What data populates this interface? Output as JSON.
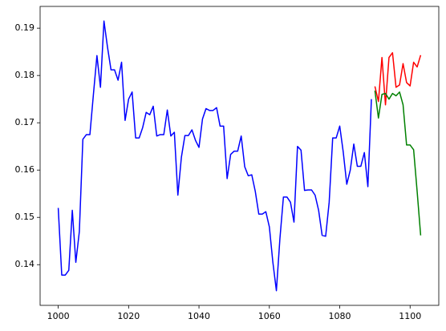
{
  "chart_data": {
    "type": "line",
    "series": [
      {
        "color": "#0000ff",
        "x": [
          1000,
          1001,
          1002,
          1003,
          1004,
          1005,
          1006,
          1007,
          1008,
          1009,
          1010,
          1011,
          1012,
          1013,
          1014,
          1015,
          1016,
          1017,
          1018,
          1019,
          1020,
          1021,
          1022,
          1023,
          1024,
          1025,
          1026,
          1027,
          1028,
          1029,
          1030,
          1031,
          1032,
          1033,
          1034,
          1035,
          1036,
          1037,
          1038,
          1039,
          1040,
          1041,
          1042,
          1043,
          1044,
          1045,
          1046,
          1047,
          1048,
          1049,
          1050,
          1051,
          1052,
          1053,
          1054,
          1055,
          1056,
          1057,
          1058,
          1059,
          1060,
          1061,
          1062,
          1063,
          1064,
          1065,
          1066,
          1067,
          1068,
          1069,
          1070,
          1071,
          1072,
          1073,
          1074,
          1075,
          1076,
          1077,
          1078,
          1079,
          1080,
          1081,
          1082,
          1083,
          1084,
          1085,
          1086,
          1087,
          1088,
          1089
        ],
        "values": [
          0.152,
          0.1378,
          0.1378,
          0.1388,
          0.1515,
          0.1405,
          0.147,
          0.1665,
          0.1675,
          0.1675,
          0.176,
          0.1842,
          0.1775,
          0.1915,
          0.186,
          0.1812,
          0.1812,
          0.179,
          0.1828,
          0.1705,
          0.175,
          0.1765,
          0.1668,
          0.1668,
          0.169,
          0.1722,
          0.1717,
          0.1735,
          0.1672,
          0.1675,
          0.1675,
          0.1727,
          0.1672,
          0.168,
          0.1547,
          0.1627,
          0.1673,
          0.1673,
          0.1685,
          0.1663,
          0.1648,
          0.1708,
          0.173,
          0.1726,
          0.1726,
          0.1732,
          0.1693,
          0.1693,
          0.1582,
          0.1633,
          0.164,
          0.164,
          0.1672,
          0.1607,
          0.1588,
          0.159,
          0.1555,
          0.1507,
          0.1507,
          0.1512,
          0.148,
          0.1405,
          0.1345,
          0.1455,
          0.1543,
          0.1543,
          0.1532,
          0.149,
          0.165,
          0.1642,
          0.1557,
          0.1558,
          0.1558,
          0.1547,
          0.1515,
          0.1462,
          0.146,
          0.1532,
          0.1668,
          0.1668,
          0.1693,
          0.1638,
          0.157,
          0.16,
          0.1655,
          0.1608,
          0.1608,
          0.1637,
          0.1565,
          0.175
        ]
      },
      {
        "color": "#ff0000",
        "x": [
          1090,
          1091,
          1092,
          1093,
          1094,
          1095,
          1096,
          1097,
          1098,
          1099,
          1100,
          1101,
          1102,
          1103
        ],
        "values": [
          0.1777,
          0.1745,
          0.1838,
          0.1738,
          0.1838,
          0.1848,
          0.1775,
          0.178,
          0.1825,
          0.1785,
          0.1778,
          0.1828,
          0.1818,
          0.1843
        ]
      },
      {
        "color": "#008000",
        "x": [
          1090,
          1091,
          1092,
          1093,
          1094,
          1095,
          1096,
          1097,
          1098,
          1099,
          1100,
          1101,
          1102,
          1103
        ],
        "values": [
          0.1768,
          0.171,
          0.176,
          0.1762,
          0.175,
          0.1762,
          0.1757,
          0.1765,
          0.1738,
          0.1653,
          0.1653,
          0.1643,
          0.1555,
          0.1462
        ]
      }
    ],
    "xlim": [
      994.85,
      1108.15
    ],
    "xticks": [
      1000,
      1020,
      1040,
      1060,
      1080,
      1100
    ],
    "ylim": [
      0.1314,
      0.1946
    ],
    "yticks": [
      0.14,
      0.15,
      0.16,
      0.17,
      0.18,
      0.19
    ],
    "grid": false
  }
}
